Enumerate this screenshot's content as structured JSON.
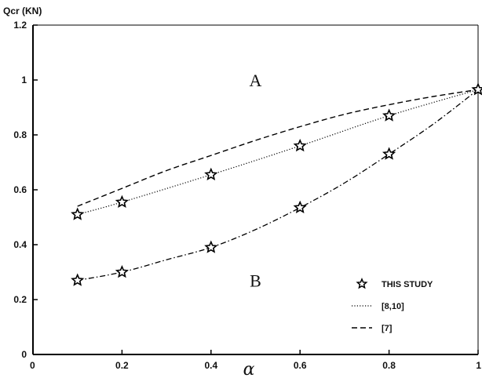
{
  "chart_data": {
    "type": "line",
    "ylabel": "Qcr (KN)",
    "xlabel": "α",
    "xlim": [
      0,
      1
    ],
    "ylim": [
      0,
      1.2
    ],
    "x_ticks": [
      {
        "value": 0,
        "label": "0"
      },
      {
        "value": 0.2,
        "label": "0.2"
      },
      {
        "value": 0.4,
        "label": "0.4"
      },
      {
        "value": 0.6,
        "label": "0.6"
      },
      {
        "value": 0.8,
        "label": "0.8"
      },
      {
        "value": 1,
        "label": "1"
      }
    ],
    "y_ticks": [
      {
        "value": 0,
        "label": "0"
      },
      {
        "value": 0.2,
        "label": "0.2"
      },
      {
        "value": 0.4,
        "label": "0.4"
      },
      {
        "value": 0.6,
        "label": "0.6"
      },
      {
        "value": 0.8,
        "label": "0.8"
      },
      {
        "value": 1,
        "label": "1"
      },
      {
        "value": 1.2,
        "label": "1.2"
      }
    ],
    "annotations": [
      {
        "text": "A",
        "x": 0.5,
        "y": 1.0
      },
      {
        "text": "B",
        "x": 0.5,
        "y": 0.27
      }
    ],
    "legend_position": "bottom-right",
    "grid": false,
    "series": [
      {
        "name": "THIS STUDY",
        "style": "markers",
        "marker": "star",
        "x": [
          0.1,
          0.2,
          0.4,
          0.6,
          0.8,
          1.0,
          0.1,
          0.2,
          0.4,
          0.6,
          0.8
        ],
        "y": [
          0.51,
          0.555,
          0.655,
          0.76,
          0.87,
          0.965,
          0.27,
          0.3,
          0.39,
          0.535,
          0.73
        ]
      },
      {
        "name": "[8,10]",
        "style": "dotted",
        "x": [
          0.1,
          0.2,
          0.4,
          0.6,
          0.8,
          1.0
        ],
        "y": [
          0.51,
          0.555,
          0.655,
          0.76,
          0.87,
          0.965
        ]
      },
      {
        "name": "[7]",
        "style": "dashed",
        "x": [
          0.1,
          0.2,
          0.3,
          0.4,
          0.5,
          0.6,
          0.7,
          0.8,
          0.9,
          1.0
        ],
        "y": [
          0.54,
          0.605,
          0.67,
          0.725,
          0.78,
          0.83,
          0.875,
          0.91,
          0.94,
          0.965
        ]
      },
      {
        "name": "",
        "style": "dash-dot",
        "x": [
          0.1,
          0.2,
          0.3,
          0.4,
          0.5,
          0.6,
          0.7,
          0.8,
          0.9,
          1.0
        ],
        "y": [
          0.27,
          0.3,
          0.345,
          0.39,
          0.455,
          0.535,
          0.625,
          0.73,
          0.84,
          0.965
        ]
      }
    ]
  }
}
